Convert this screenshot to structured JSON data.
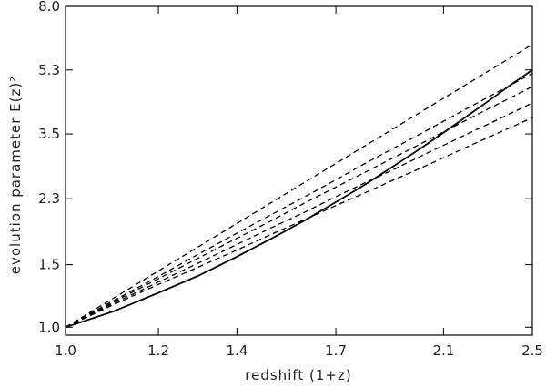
{
  "chart_data": {
    "type": "line",
    "title": "",
    "xlabel": "redshift  (1+z)",
    "ylabel": "evolution parameter E(z)²",
    "x_scale": "log",
    "y_scale": "log",
    "xlim": [
      1.0,
      2.5
    ],
    "ylim": [
      0.95,
      8.0
    ],
    "x_ticks": [
      1.0,
      1.2,
      1.4,
      1.7,
      2.1,
      2.5
    ],
    "x_tick_labels": [
      "1.0",
      "1.2",
      "1.4",
      "1.7",
      "2.1",
      "2.5"
    ],
    "y_ticks": [
      1.0,
      1.5,
      2.3,
      3.5,
      5.3,
      8.0
    ],
    "y_tick_labels": [
      "1.0",
      "1.5",
      "2.3",
      "3.5",
      "5.3",
      "8.0"
    ],
    "grid": false,
    "legend": "none",
    "x": [
      1.0,
      1.1,
      1.2,
      1.3,
      1.4,
      1.5,
      1.6,
      1.7,
      1.8,
      1.9,
      2.0,
      2.1,
      2.2,
      2.3,
      2.4,
      2.5
    ],
    "series": [
      {
        "style": "solid",
        "values": [
          1.0,
          1.11,
          1.25,
          1.4,
          1.58,
          1.78,
          2.0,
          2.25,
          2.52,
          2.83,
          3.16,
          3.53,
          3.93,
          4.36,
          4.83,
          5.3
        ]
      },
      {
        "style": "dashed",
        "values": [
          1.0,
          1.21,
          1.44,
          1.69,
          1.96,
          2.25,
          2.56,
          2.89,
          3.24,
          3.61,
          4.0,
          4.41,
          4.84,
          5.29,
          5.76,
          6.25
        ]
      },
      {
        "style": "dashed",
        "values": [
          1.0,
          1.19,
          1.39,
          1.61,
          1.84,
          2.08,
          2.33,
          2.6,
          2.89,
          3.18,
          3.48,
          3.8,
          4.13,
          4.47,
          4.82,
          5.18
        ]
      },
      {
        "style": "dashed",
        "values": [
          1.0,
          1.18,
          1.37,
          1.57,
          1.78,
          2.0,
          2.24,
          2.48,
          2.73,
          2.99,
          3.26,
          3.55,
          3.84,
          4.14,
          4.44,
          4.76
        ]
      },
      {
        "style": "dashed",
        "values": [
          1.0,
          1.17,
          1.34,
          1.52,
          1.71,
          1.91,
          2.11,
          2.33,
          2.55,
          2.77,
          3.01,
          3.25,
          3.5,
          3.75,
          4.01,
          4.28
        ]
      },
      {
        "style": "dashed",
        "values": [
          1.0,
          1.16,
          1.32,
          1.48,
          1.65,
          1.83,
          2.01,
          2.2,
          2.39,
          2.59,
          2.79,
          3.0,
          3.22,
          3.44,
          3.66,
          3.89
        ]
      }
    ]
  }
}
